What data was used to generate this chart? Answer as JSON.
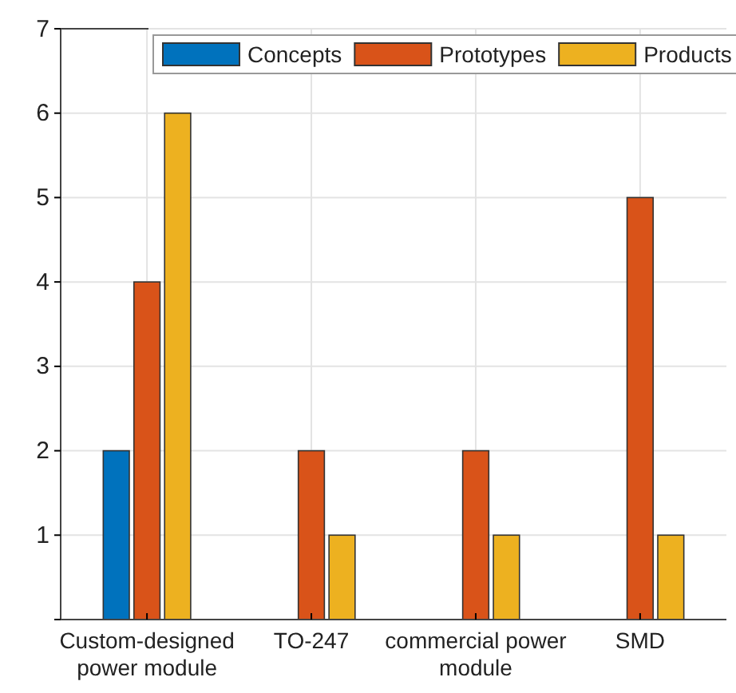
{
  "chart_data": {
    "type": "bar",
    "categories": [
      "Custom-designed power module",
      "TO-247",
      "commercial power module",
      "SMD"
    ],
    "series": [
      {
        "name": "Concepts",
        "color": "#0072bd",
        "values": [
          2,
          0,
          0,
          0
        ]
      },
      {
        "name": "Prototypes",
        "color": "#d95319",
        "values": [
          4,
          2,
          2,
          5
        ]
      },
      {
        "name": "Products",
        "color": "#edb120",
        "values": [
          6,
          1,
          1,
          1
        ]
      }
    ],
    "ylim": [
      0,
      7
    ],
    "yticks": [
      {
        "value": 0,
        "label": null
      },
      1,
      2,
      3,
      4,
      5,
      6,
      7
    ],
    "grid": true,
    "legend": "top"
  }
}
